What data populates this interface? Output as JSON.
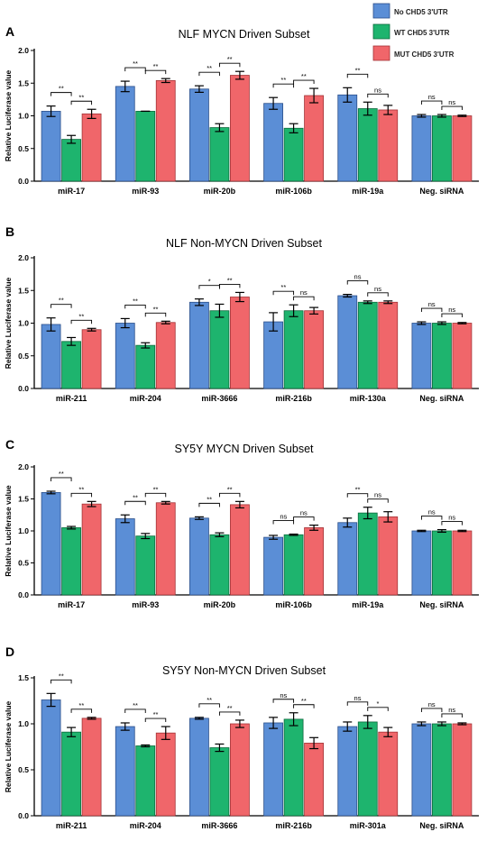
{
  "legend": {
    "entries": [
      {
        "label": "No CHD5 3'UTR",
        "color": "#5b8ed6"
      },
      {
        "label": "WT CHD5 3'UTR",
        "color": "#1eb46e"
      },
      {
        "label": "MUT CHD5 3'UTR",
        "color": "#f0666a"
      }
    ]
  },
  "chart_data": [
    {
      "type": "bar",
      "panel": "A",
      "title": "NLF MYCN Driven Subset",
      "ylabel": "Relative Luciferase value",
      "xlabel": "",
      "ylim": [
        0,
        2.0
      ],
      "yticks": [
        "0.0",
        "0.5",
        "1.0",
        "1.5",
        "2.0"
      ],
      "categories": [
        "miR-17",
        "miR-93",
        "miR-20b",
        "miR-106b",
        "miR-19a",
        "Neg. siRNA"
      ],
      "series": [
        {
          "name": "No CHD5 3'UTR",
          "values": [
            1.07,
            1.45,
            1.41,
            1.19,
            1.32,
            1.0
          ],
          "errors": [
            0.08,
            0.08,
            0.05,
            0.09,
            0.11,
            0.02
          ]
        },
        {
          "name": "WT CHD5 3'UTR",
          "values": [
            0.64,
            1.07,
            0.82,
            0.81,
            1.11,
            1.0
          ],
          "errors": [
            0.06,
            0.0,
            0.06,
            0.07,
            0.1,
            0.02
          ]
        },
        {
          "name": "MUT CHD5 3'UTR",
          "values": [
            1.03,
            1.54,
            1.62,
            1.31,
            1.09,
            1.0
          ],
          "errors": [
            0.07,
            0.03,
            0.06,
            0.11,
            0.07,
            0.01
          ]
        }
      ],
      "significance": [
        [
          "**",
          "**"
        ],
        [
          "**",
          "**"
        ],
        [
          "**",
          "**"
        ],
        [
          "**",
          "**"
        ],
        [
          "**",
          "ns"
        ],
        [
          "ns",
          "ns"
        ]
      ]
    },
    {
      "type": "bar",
      "panel": "B",
      "title": "NLF Non-MYCN Driven Subset",
      "ylabel": "Relative Luciferase value",
      "xlabel": "",
      "ylim": [
        0,
        2.0
      ],
      "yticks": [
        "0.0",
        "0.5",
        "1.0",
        "1.5",
        "2.0"
      ],
      "categories": [
        "miR-211",
        "miR-204",
        "miR-3666",
        "miR-216b",
        "miR-130a",
        "Neg. siRNA"
      ],
      "series": [
        {
          "name": "No CHD5 3'UTR",
          "values": [
            0.98,
            1.0,
            1.32,
            1.02,
            1.42,
            1.0
          ],
          "errors": [
            0.1,
            0.07,
            0.05,
            0.14,
            0.02,
            0.02
          ]
        },
        {
          "name": "WT CHD5 3'UTR",
          "values": [
            0.72,
            0.66,
            1.19,
            1.19,
            1.32,
            1.0
          ],
          "errors": [
            0.06,
            0.04,
            0.1,
            0.09,
            0.02,
            0.02
          ]
        },
        {
          "name": "MUT CHD5 3'UTR",
          "values": [
            0.9,
            1.01,
            1.4,
            1.19,
            1.32,
            1.0
          ],
          "errors": [
            0.02,
            0.02,
            0.07,
            0.05,
            0.02,
            0.01
          ]
        }
      ],
      "significance": [
        [
          "**",
          "**"
        ],
        [
          "**",
          "**"
        ],
        [
          "*",
          "**"
        ],
        [
          "**",
          "ns"
        ],
        [
          "ns",
          "ns"
        ],
        [
          "ns",
          "ns"
        ]
      ]
    },
    {
      "type": "bar",
      "panel": "C",
      "title": "SY5Y MYCN Driven Subset",
      "ylabel": "Relative Luciferase value",
      "xlabel": "",
      "ylim": [
        0,
        2.0
      ],
      "yticks": [
        "0.0",
        "0.5",
        "1.0",
        "1.5",
        "2.0"
      ],
      "categories": [
        "miR-17",
        "miR-93",
        "miR-20b",
        "miR-106b",
        "miR-19a",
        "Neg. siRNA"
      ],
      "series": [
        {
          "name": "No CHD5 3'UTR",
          "values": [
            1.6,
            1.19,
            1.2,
            0.9,
            1.13,
            1.0
          ],
          "errors": [
            0.02,
            0.06,
            0.02,
            0.03,
            0.07,
            0.01
          ]
        },
        {
          "name": "WT CHD5 3'UTR",
          "values": [
            1.05,
            0.92,
            0.94,
            0.94,
            1.28,
            1.0
          ],
          "errors": [
            0.02,
            0.04,
            0.03,
            0.01,
            0.09,
            0.02
          ]
        },
        {
          "name": "MUT CHD5 3'UTR",
          "values": [
            1.42,
            1.44,
            1.41,
            1.05,
            1.22,
            1.0
          ],
          "errors": [
            0.04,
            0.02,
            0.05,
            0.04,
            0.08,
            0.01
          ]
        }
      ],
      "significance": [
        [
          "**",
          "**"
        ],
        [
          "**",
          "**"
        ],
        [
          "**",
          "**"
        ],
        [
          "ns",
          "ns"
        ],
        [
          "**",
          "ns"
        ],
        [
          "ns",
          "ns"
        ]
      ]
    },
    {
      "type": "bar",
      "panel": "D",
      "title": "SY5Y Non-MYCN Driven Subset",
      "ylabel": "Relative Luciferase value",
      "xlabel": "",
      "ylim": [
        0,
        1.5
      ],
      "yticks": [
        "0.0",
        "0.5",
        "1.0",
        "1.5"
      ],
      "categories": [
        "miR-211",
        "miR-204",
        "miR-3666",
        "miR-216b",
        "miR-301a",
        "Neg. siRNA"
      ],
      "series": [
        {
          "name": "No CHD5 3'UTR",
          "values": [
            1.26,
            0.97,
            1.06,
            1.01,
            0.97,
            1.0
          ],
          "errors": [
            0.07,
            0.04,
            0.01,
            0.06,
            0.05,
            0.02
          ]
        },
        {
          "name": "WT CHD5 3'UTR",
          "values": [
            0.91,
            0.76,
            0.74,
            1.05,
            1.02,
            1.0
          ],
          "errors": [
            0.05,
            0.01,
            0.04,
            0.07,
            0.07,
            0.02
          ]
        },
        {
          "name": "MUT CHD5 3'UTR",
          "values": [
            1.06,
            0.9,
            1.0,
            0.79,
            0.91,
            1.0
          ],
          "errors": [
            0.01,
            0.07,
            0.04,
            0.06,
            0.05,
            0.01
          ]
        }
      ],
      "significance": [
        [
          "**",
          "**"
        ],
        [
          "**",
          "**"
        ],
        [
          "**",
          "**"
        ],
        [
          "ns",
          "**"
        ],
        [
          "ns",
          "*"
        ],
        [
          "ns",
          "ns"
        ]
      ]
    }
  ]
}
